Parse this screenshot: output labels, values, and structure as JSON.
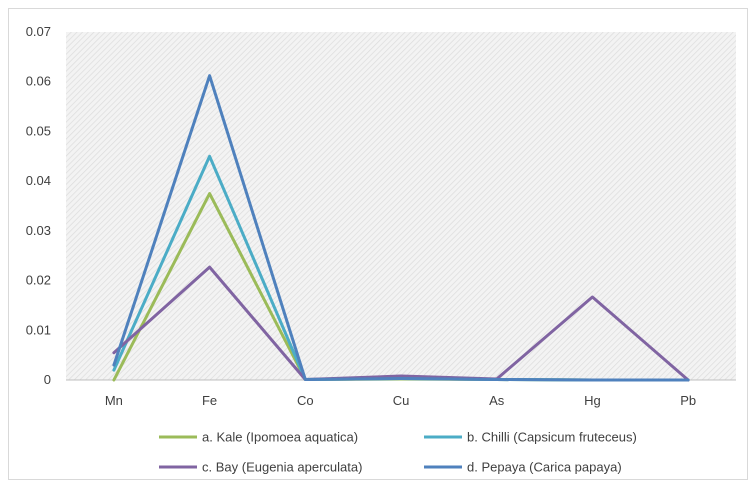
{
  "chart_data": {
    "type": "line",
    "categories": [
      "Mn",
      "Fe",
      "Co",
      "Cu",
      "As",
      "Hg",
      "Pb"
    ],
    "ylim": [
      0,
      0.07
    ],
    "yticks": [
      0,
      0.01,
      0.02,
      0.03,
      0.04,
      0.05,
      0.06,
      0.07
    ],
    "ytick_labels": [
      "0",
      "0.01",
      "0.02",
      "0.03",
      "0.04",
      "0.05",
      "0.06",
      "0.07"
    ],
    "grid": false,
    "plot_background": "hatched",
    "legend_position": "bottom",
    "series": [
      {
        "name": "a. Kale (Ipomoea aquatica)",
        "color": "#9bbb59",
        "values": [
          0.0,
          0.0375,
          0.0001,
          0.0002,
          0.0001,
          0.0,
          0.0
        ]
      },
      {
        "name": "b. Chilli (Capsicum fruteceus)",
        "color": "#4bacc6",
        "values": [
          0.002,
          0.045,
          0.0001,
          0.0003,
          0.0001,
          0.0,
          0.0
        ]
      },
      {
        "name": "c. Bay (Eugenia aperculata)",
        "color": "#8064a2",
        "values": [
          0.0055,
          0.0227,
          0.0001,
          0.0008,
          0.0002,
          0.0167,
          0.0
        ]
      },
      {
        "name": "d. Pepaya (Carica papaya)",
        "color": "#4f81bd",
        "values": [
          0.003,
          0.0612,
          0.0001,
          0.0003,
          0.0001,
          0.0,
          0.0
        ]
      }
    ]
  }
}
